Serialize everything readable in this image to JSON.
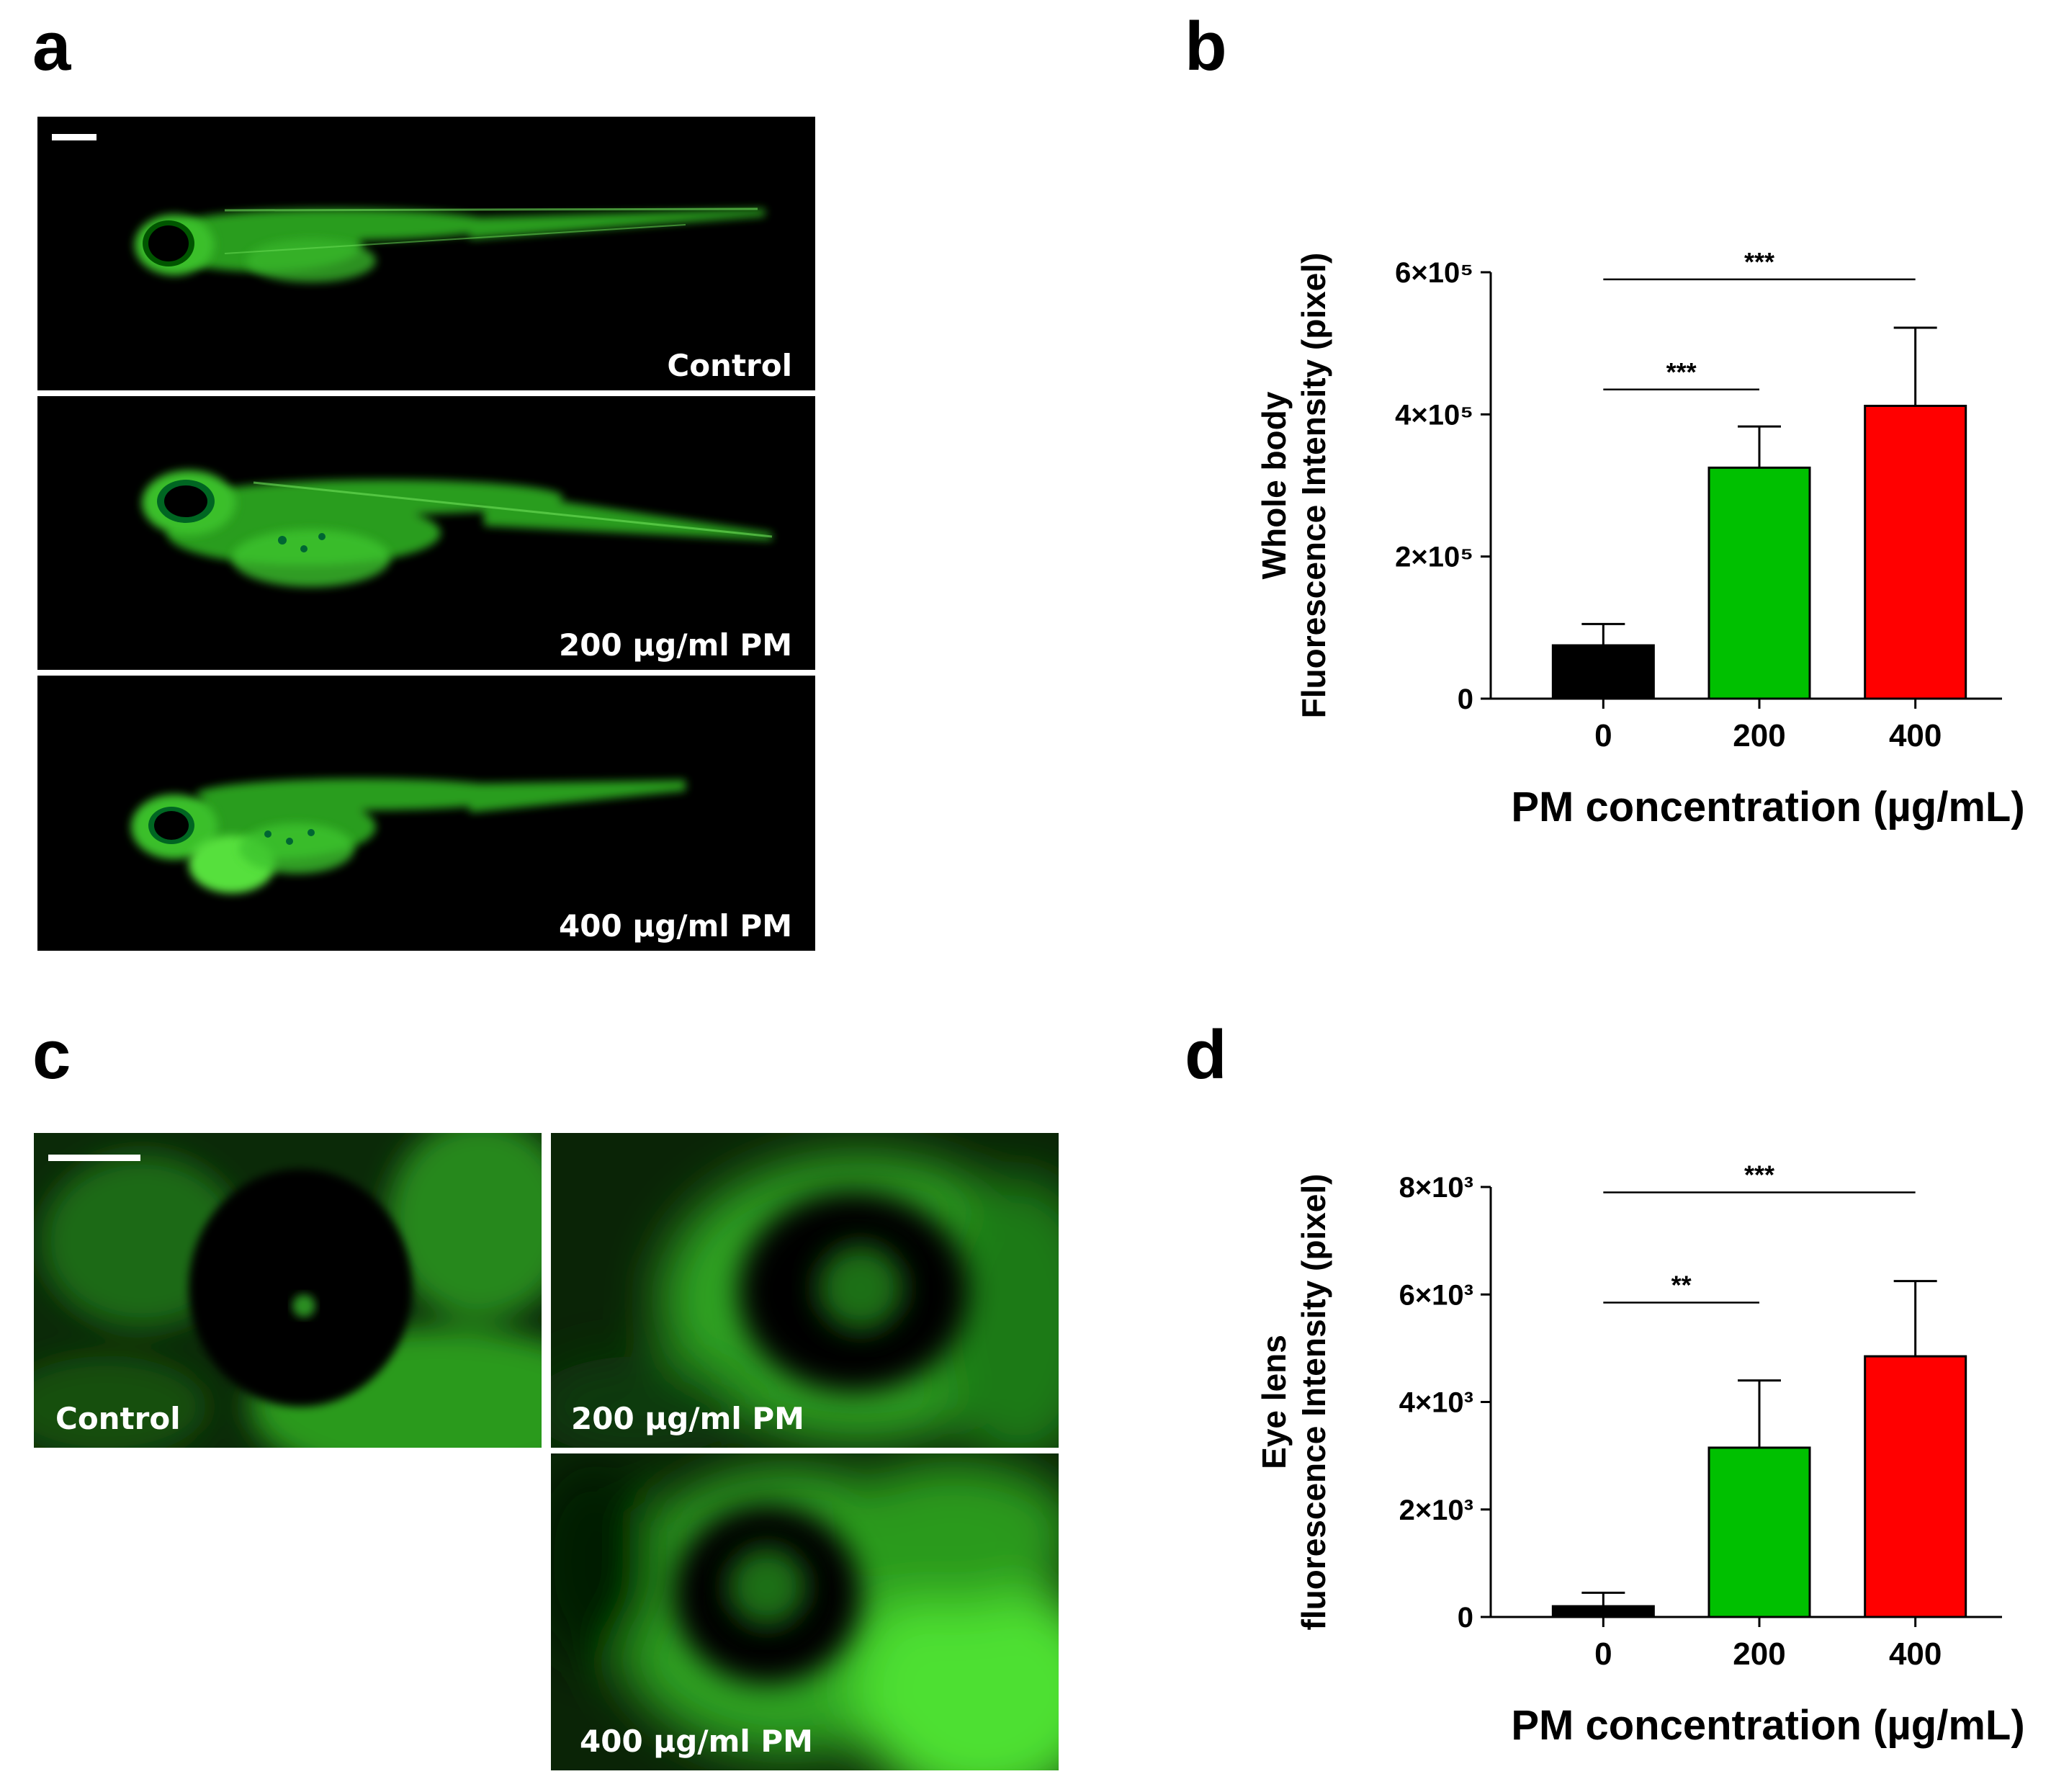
{
  "panels": {
    "a": {
      "letter": "a",
      "labels": [
        "Control",
        "200 µg/ml PM",
        "400 µg/ml PM"
      ]
    },
    "b": {
      "letter": "b"
    },
    "c": {
      "letter": "c",
      "labels": [
        "Control",
        "200 µg/ml PM",
        "400 µg/ml PM"
      ]
    },
    "d": {
      "letter": "d"
    }
  },
  "colors": {
    "control": "#000000",
    "pm200": "#00c000",
    "pm400": "#ff0000",
    "fluorescence": "#3ccc28"
  },
  "chart_data": [
    {
      "type": "bar",
      "panel": "b",
      "categories": [
        "0",
        "200",
        "400"
      ],
      "values": [
        75000,
        325000,
        412000
      ],
      "errors": [
        30000,
        58000,
        110000
      ],
      "bar_colors": [
        "#000000",
        "#00c000",
        "#ff0000"
      ],
      "xlabel": "PM concentration (µg/mL)",
      "ylabel": [
        "Whole body",
        "Fluorescence Intensity (pixel)"
      ],
      "ylim": [
        0,
        600000
      ],
      "ticks": [
        {
          "value": 0,
          "label": "0"
        },
        {
          "value": 200000,
          "label": "2×10⁵"
        },
        {
          "value": 400000,
          "label": "4×10⁵"
        },
        {
          "value": 600000,
          "label": "6×10⁵"
        }
      ],
      "significance": [
        {
          "from": 0,
          "to": 1,
          "label": "***",
          "level": 435000
        },
        {
          "from": 0,
          "to": 2,
          "label": "***",
          "level": 590000
        }
      ]
    },
    {
      "type": "bar",
      "panel": "d",
      "categories": [
        "0",
        "200",
        "400"
      ],
      "values": [
        200,
        3150,
        4850
      ],
      "errors": [
        250,
        1250,
        1400
      ],
      "bar_colors": [
        "#000000",
        "#00c000",
        "#ff0000"
      ],
      "xlabel": "PM concentration (µg/mL)",
      "ylabel": [
        "Eye lens",
        "fluorescence Intensity (pixel)"
      ],
      "ylim": [
        0,
        8000
      ],
      "ticks": [
        {
          "value": 0,
          "label": "0"
        },
        {
          "value": 2000,
          "label": "2×10³"
        },
        {
          "value": 4000,
          "label": "4×10³"
        },
        {
          "value": 6000,
          "label": "6×10³"
        },
        {
          "value": 8000,
          "label": "8×10³"
        }
      ],
      "significance": [
        {
          "from": 0,
          "to": 1,
          "label": "**",
          "level": 5850
        },
        {
          "from": 0,
          "to": 2,
          "label": "***",
          "level": 7900
        }
      ]
    }
  ]
}
